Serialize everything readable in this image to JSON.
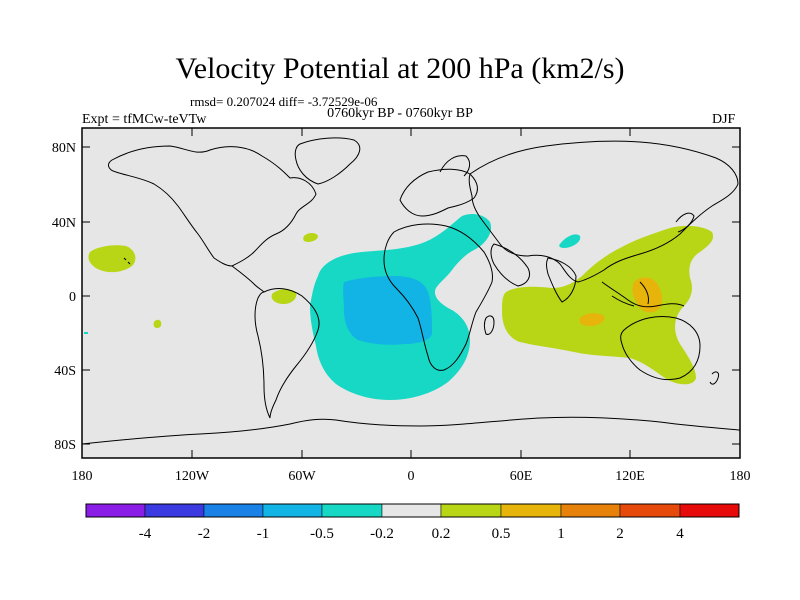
{
  "title": "Velocity Potential at 200 hPa (km2/s)",
  "stats_line": "rmsd= 0.207024 diff= -3.72529e-06",
  "period_line": "0760kyr BP - 0760kyr BP",
  "experiment": "Expt = tfMCw-teVTw",
  "season": "DJF",
  "lat_ticks": [
    "80N",
    "40N",
    "0",
    "40S",
    "80S"
  ],
  "lon_ticks": [
    "180",
    "120W",
    "60W",
    "0",
    "60E",
    "120E",
    "180"
  ],
  "colorbar": {
    "labels": [
      "-4",
      "-2",
      "-1",
      "-0.5",
      "-0.2",
      "0.2",
      "0.5",
      "1",
      "2",
      "4"
    ],
    "colors": [
      "#8a1ee6",
      "#3a3ae0",
      "#1a82e6",
      "#12b4e6",
      "#16d8c4",
      "#e6e6e6",
      "#b8d616",
      "#e6b40a",
      "#e6820a",
      "#e64a0a",
      "#e60a0a"
    ]
  },
  "map_colors": {
    "background": "#e6e6e6",
    "neg_02": "#16d8c4",
    "neg_05": "#12b4e6",
    "pos_02": "#b8d616",
    "pos_05": "#e6b40a"
  }
}
